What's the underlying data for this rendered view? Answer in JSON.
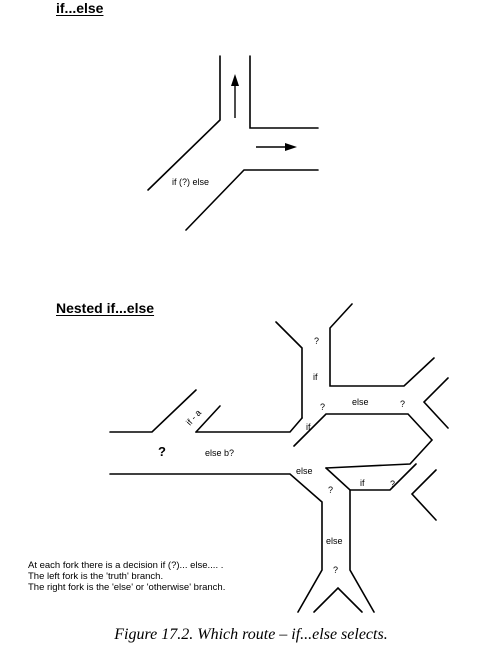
{
  "headings": {
    "simple": "if...else",
    "nested": "Nested if...else"
  },
  "simple_diagram": {
    "fork_label": "if (?) else"
  },
  "nested_diagram": {
    "labels": {
      "top_q": "?",
      "top_if": "if",
      "upper_mid_q": "?",
      "upper_else": "else",
      "upper_right_q": "?",
      "mid_if": "if",
      "if_a": "if - a",
      "big_q": "?",
      "else_b": "else b?",
      "lower_else": "else",
      "lower_mid_q": "?",
      "lower_if": "if",
      "lower_right_q": "?",
      "bottom_else": "else",
      "bottom_q": "?"
    }
  },
  "notes": [
    "At each fork there is a decision if (?)... else.... .",
    "The left fork is the 'truth' branch.",
    "The right fork is the 'else' or 'otherwise' branch."
  ],
  "caption": "Figure 17.2. Which route – if...else selects."
}
